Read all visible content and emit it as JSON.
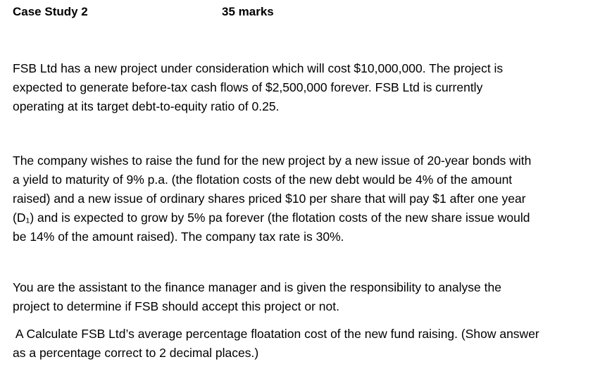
{
  "header": {
    "title": "Case Study 2",
    "marks": "35 marks"
  },
  "paragraphs": [
    {
      "lines": [
        "FSB Ltd has a new project under consideration which will cost $10,000,000. The project is",
        "expected to generate before-tax cash flows of $2,500,000 forever. FSB Ltd is currently",
        "operating at its target debt-to-equity ratio of 0.25."
      ]
    },
    {
      "lines": [
        "The company wishes to raise the fund for the new project by a new issue of 20-year bonds with",
        "a yield to maturity of 9% p.a. (the flotation costs of the new debt would be 4% of the amount",
        "raised) and a new issue of ordinary shares priced $10 per share that will pay $1 after one year",
        "(D₁) and is expected to grow by 5% pa forever (the flotation costs of the new share issue would",
        "be 14% of the amount raised). The company tax rate is 30%."
      ]
    },
    {
      "lines": [
        "You are the assistant to the finance manager and is given the responsibility to analyse the",
        "project to determine if FSB should accept this project or not."
      ]
    },
    {
      "lines": [
        " A Calculate FSB Ltd’s average percentage floatation cost of the new fund raising. (Show answer",
        "as a percentage correct to 2 decimal places.)"
      ]
    }
  ]
}
